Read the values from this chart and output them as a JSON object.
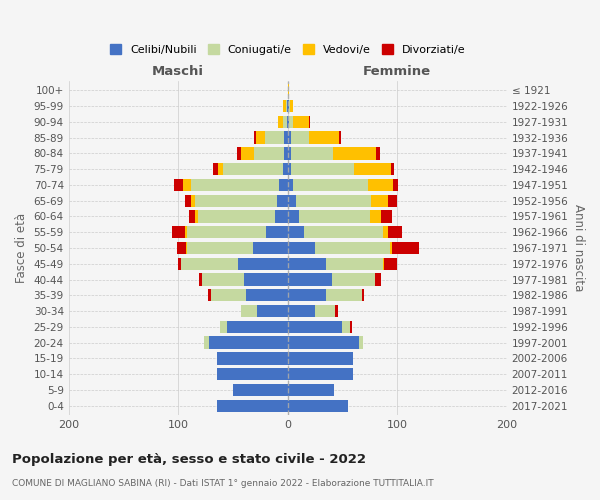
{
  "age_groups": [
    "0-4",
    "5-9",
    "10-14",
    "15-19",
    "20-24",
    "25-29",
    "30-34",
    "35-39",
    "40-44",
    "45-49",
    "50-54",
    "55-59",
    "60-64",
    "65-69",
    "70-74",
    "75-79",
    "80-84",
    "85-89",
    "90-94",
    "95-99",
    "100+"
  ],
  "birth_years": [
    "2017-2021",
    "2012-2016",
    "2007-2011",
    "2002-2006",
    "1997-2001",
    "1992-1996",
    "1987-1991",
    "1982-1986",
    "1977-1981",
    "1972-1976",
    "1967-1971",
    "1962-1966",
    "1957-1961",
    "1952-1956",
    "1947-1951",
    "1942-1946",
    "1937-1941",
    "1932-1936",
    "1927-1931",
    "1922-1926",
    "≤ 1921"
  ],
  "males": {
    "celibi": [
      65,
      50,
      65,
      65,
      72,
      55,
      28,
      38,
      40,
      45,
      32,
      20,
      12,
      10,
      8,
      4,
      3,
      3,
      1,
      1,
      0
    ],
    "coniugati": [
      0,
      0,
      0,
      0,
      4,
      7,
      15,
      32,
      38,
      52,
      60,
      72,
      70,
      75,
      80,
      55,
      28,
      18,
      3,
      1,
      0
    ],
    "vedovi": [
      0,
      0,
      0,
      0,
      0,
      0,
      0,
      0,
      0,
      0,
      1,
      2,
      3,
      3,
      8,
      5,
      12,
      8,
      5,
      2,
      0
    ],
    "divorziati": [
      0,
      0,
      0,
      0,
      0,
      0,
      0,
      3,
      3,
      3,
      8,
      12,
      5,
      6,
      8,
      4,
      3,
      2,
      0,
      0,
      0
    ]
  },
  "females": {
    "nubili": [
      55,
      42,
      60,
      60,
      65,
      50,
      25,
      35,
      40,
      35,
      25,
      15,
      10,
      8,
      5,
      3,
      3,
      3,
      1,
      1,
      0
    ],
    "coniugate": [
      0,
      0,
      0,
      0,
      4,
      7,
      18,
      33,
      40,
      52,
      68,
      72,
      65,
      68,
      68,
      58,
      38,
      16,
      4,
      1,
      0
    ],
    "vedove": [
      0,
      0,
      0,
      0,
      0,
      0,
      0,
      0,
      0,
      1,
      2,
      5,
      10,
      16,
      23,
      33,
      40,
      28,
      14,
      3,
      1
    ],
    "divorziate": [
      0,
      0,
      0,
      0,
      0,
      2,
      3,
      2,
      5,
      12,
      25,
      12,
      10,
      8,
      5,
      3,
      3,
      2,
      1,
      0,
      0
    ]
  },
  "colors": {
    "celibi": "#4472c4",
    "coniugati": "#c5d9a0",
    "vedovi": "#ffc000",
    "divorziati": "#cc0000"
  },
  "title": "Popolazione per età, sesso e stato civile - 2022",
  "subtitle": "COMUNE DI MAGLIANO SABINA (RI) - Dati ISTAT 1° gennaio 2022 - Elaborazione TUTTITALIA.IT",
  "xlabel_left": "Maschi",
  "xlabel_right": "Femmine",
  "ylabel_left": "Fasce di età",
  "ylabel_right": "Anni di nascita",
  "xlim": 200,
  "background_color": "#f5f5f5",
  "legend_labels": [
    "Celibi/Nubili",
    "Coniugati/e",
    "Vedovi/e",
    "Divorziati/e"
  ]
}
